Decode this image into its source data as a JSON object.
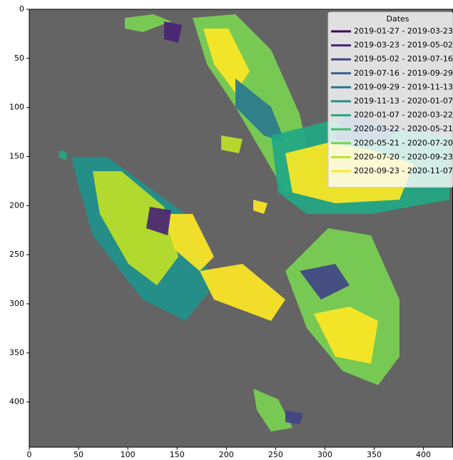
{
  "chart_data": {
    "type": "image",
    "xlim": [
      0,
      430
    ],
    "ylim": [
      0,
      446
    ],
    "y_inverted": true,
    "xticks": [
      0,
      50,
      100,
      150,
      200,
      250,
      300,
      350,
      400
    ],
    "yticks": [
      0,
      50,
      100,
      150,
      200,
      250,
      300,
      350,
      400
    ],
    "background": "#646464",
    "legend": {
      "title": "Dates",
      "position": "upper right"
    },
    "series": [
      {
        "name": "2019-01-27 - 2019-03-23",
        "color": "#440154"
      },
      {
        "name": "2019-03-23 - 2019-05-02",
        "color": "#482475"
      },
      {
        "name": "2019-05-02 - 2019-07-16",
        "color": "#414487"
      },
      {
        "name": "2019-07-16 - 2019-09-29",
        "color": "#355f8d"
      },
      {
        "name": "2019-09-29 - 2019-11-13",
        "color": "#2a788e"
      },
      {
        "name": "2019-11-13 - 2020-01-07",
        "color": "#21918c"
      },
      {
        "name": "2020-01-07 - 2020-03-22",
        "color": "#22a884"
      },
      {
        "name": "2020-03-22 - 2020-05-21",
        "color": "#44bf70"
      },
      {
        "name": "2020-05-21 - 2020-07-20",
        "color": "#7ad151"
      },
      {
        "name": "2020-07-20 - 2020-09-23",
        "color": "#bddf26"
      },
      {
        "name": "2020-09-23 - 2020-11-07",
        "color": "#fde725"
      }
    ]
  }
}
